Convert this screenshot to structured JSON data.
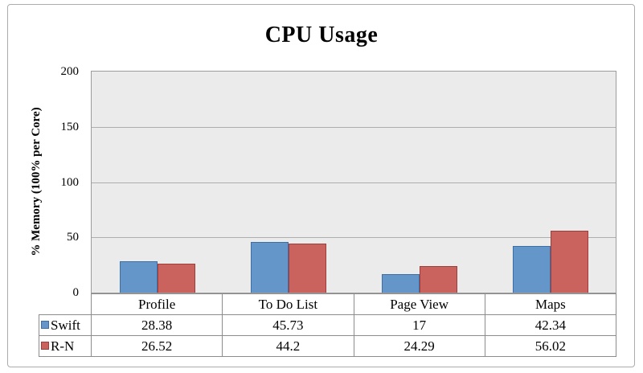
{
  "chart_data": {
    "type": "bar",
    "title": "CPU Usage",
    "ylabel": "% Memory (100% per Core)",
    "categories": [
      "Profile",
      "To Do List",
      "Page View",
      "Maps"
    ],
    "series": [
      {
        "name": "Swift",
        "color": "#6596ca",
        "border_color": "#3e6fa4",
        "values": [
          28.38,
          45.73,
          17,
          42.34
        ]
      },
      {
        "name": "R-N",
        "color": "#ca635d",
        "border_color": "#9f3d3b",
        "values": [
          26.52,
          44.2,
          24.29,
          56.02
        ]
      }
    ],
    "ylim": [
      0,
      200
    ],
    "yticks": [
      0,
      50,
      100,
      150,
      200
    ],
    "grid": true,
    "legend_position": "table-left",
    "plot_bg": "#ebebeb"
  }
}
